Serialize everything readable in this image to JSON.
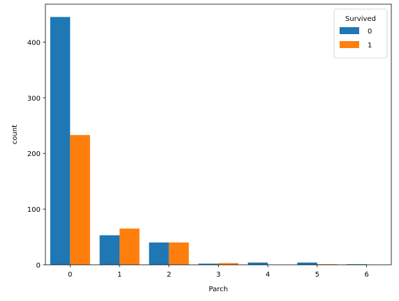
{
  "chart_data": {
    "type": "bar",
    "title": "",
    "xlabel": "Parch",
    "ylabel": "count",
    "categories": [
      "0",
      "1",
      "2",
      "3",
      "4",
      "5",
      "6"
    ],
    "series": [
      {
        "name": "0",
        "color": "#1f77b4",
        "values": [
          445,
          53,
          40,
          2,
          4,
          4,
          1
        ]
      },
      {
        "name": "1",
        "color": "#ff7f0e",
        "values": [
          233,
          65,
          40,
          3,
          0,
          1,
          0
        ]
      }
    ],
    "ylim": [
      0,
      468
    ],
    "yticks": [
      0,
      100,
      200,
      300,
      400
    ],
    "grid": false,
    "legend": {
      "title": "Survived",
      "position": "top-right"
    }
  }
}
